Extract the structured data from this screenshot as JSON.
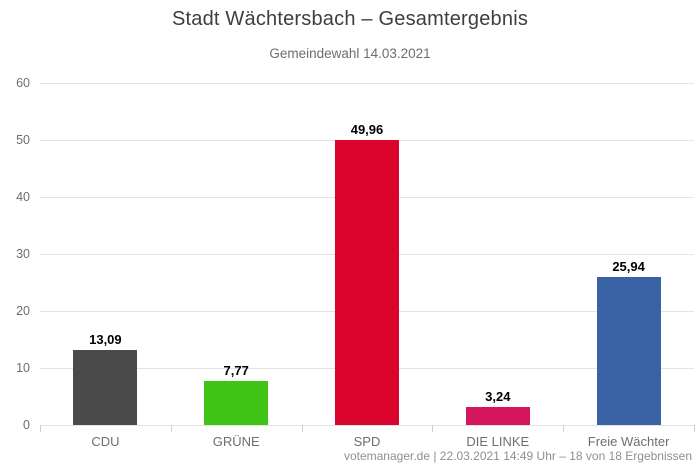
{
  "chart_data": {
    "type": "bar",
    "title": "Stadt Wächtersbach – Gesamtergebnis",
    "subtitle": "Gemeindewahl 14.03.2021",
    "categories": [
      "CDU",
      "GRÜNE",
      "SPD",
      "DIE LINKE",
      "Freie Wächter"
    ],
    "values": [
      13.09,
      7.77,
      49.96,
      3.24,
      25.94
    ],
    "value_labels": [
      "13,09",
      "7,77",
      "49,96",
      "3,24",
      "25,94"
    ],
    "bar_colors": [
      "#4a4a4a",
      "#3fc314",
      "#d9032b",
      "#d3165e",
      "#3a63a5"
    ],
    "ylim": [
      0,
      60
    ],
    "yticks": [
      0,
      10,
      20,
      30,
      40,
      50,
      60
    ],
    "xlabel": "",
    "ylabel": "",
    "grid": true,
    "legend": false
  },
  "footer": {
    "text": "votemanager.de | 22.03.2021 14:49 Uhr – 18 von 18 Ergebnissen"
  },
  "colors": {
    "title_text": "#3e3e3e",
    "subtitle_text": "#6e6e6e",
    "axis_text": "#6e6e6e",
    "gridline": "#e4e4e4",
    "tick": "#cfcfcf",
    "value_label_text": "#000000",
    "footer_text": "#8f8f8f",
    "background": "#ffffff"
  }
}
